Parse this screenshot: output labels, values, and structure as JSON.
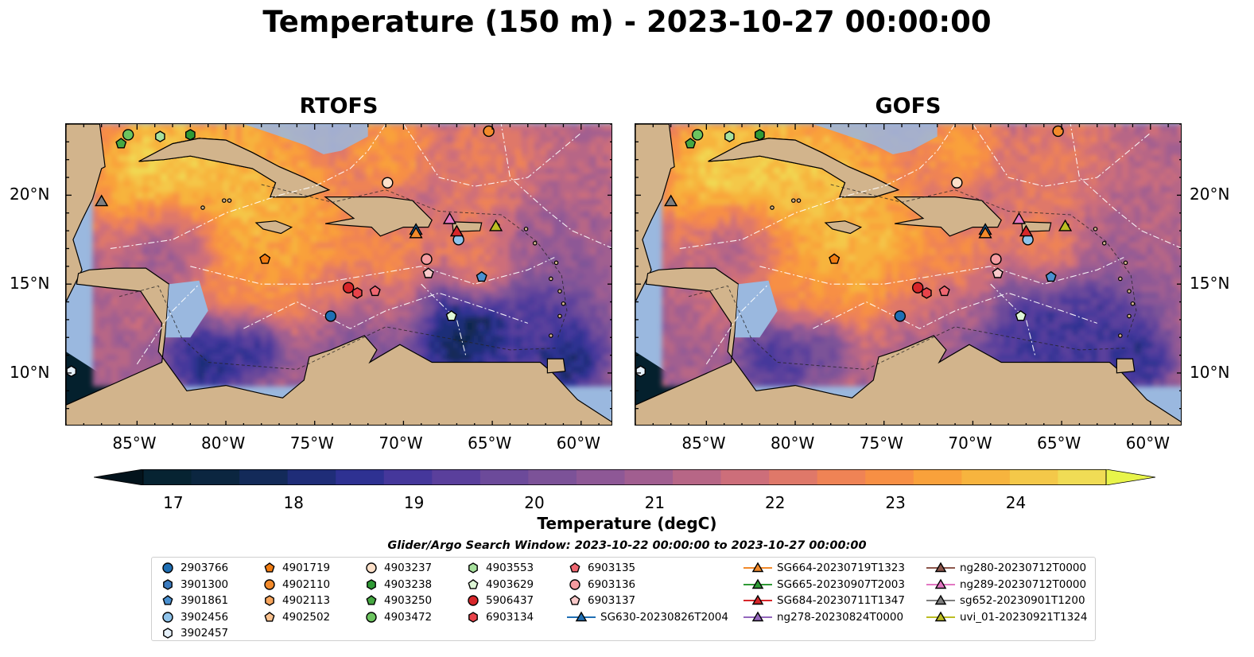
{
  "title": "Temperature (150 m) - 2023-10-27 00:00:00",
  "panels": [
    {
      "title": "RTOFS",
      "key": "rtofs"
    },
    {
      "title": "GOFS",
      "key": "gofs"
    }
  ],
  "lon_ticks": [
    "85°W",
    "80°W",
    "75°W",
    "70°W",
    "65°W",
    "60°W"
  ],
  "lat_ticks": [
    "20°N",
    "15°N",
    "10°N"
  ],
  "colorbar": {
    "label": "Temperature (degC)",
    "ticks": [
      "17",
      "18",
      "19",
      "20",
      "21",
      "22",
      "23",
      "24"
    ],
    "range": [
      16.75,
      24.75
    ],
    "extend": "both",
    "colors": [
      "#062332",
      "#0b2640",
      "#132a59",
      "#1f2d78",
      "#2e3192",
      "#45379b",
      "#5a3f9c",
      "#6c4a9a",
      "#7c5298",
      "#8e5896",
      "#a15e90",
      "#b76686",
      "#cd6e7a",
      "#df7869",
      "#ef8355",
      "#f78f44",
      "#f9a13b",
      "#f7b43e",
      "#f4c849",
      "#f0dc55"
    ],
    "extend_low_color": "#03131c",
    "extend_high_color": "#e8f44a"
  },
  "search_window": "Glider/Argo Search Window: 2023-10-22 00:00:00 to 2023-10-27 00:00:00",
  "legend": [
    {
      "label": "2903766",
      "marker": "circle",
      "color": "#1f6fb4"
    },
    {
      "label": "3901300",
      "marker": "hexagon",
      "color": "#3b7bbf"
    },
    {
      "label": "3901861",
      "marker": "pentagon",
      "color": "#4a90d0"
    },
    {
      "label": "3902456",
      "marker": "circle",
      "color": "#8fc3ea"
    },
    {
      "label": "3902457",
      "marker": "hexagon",
      "color": "#e6f1fb"
    },
    {
      "label": "4901719",
      "marker": "pentagon",
      "color": "#f07c12"
    },
    {
      "label": "4902110",
      "marker": "circle",
      "color": "#f28a2b"
    },
    {
      "label": "4902113",
      "marker": "hexagon",
      "color": "#f7a55d"
    },
    {
      "label": "4902502",
      "marker": "pentagon",
      "color": "#fbc28f"
    },
    {
      "label": "4903237",
      "marker": "circle",
      "color": "#fde0c9"
    },
    {
      "label": "4903238",
      "marker": "hexagon",
      "color": "#2f9a35"
    },
    {
      "label": "4903250",
      "marker": "pentagon",
      "color": "#46a842"
    },
    {
      "label": "4903472",
      "marker": "circle",
      "color": "#6cc45f"
    },
    {
      "label": "4903553",
      "marker": "hexagon",
      "color": "#a7e19d"
    },
    {
      "label": "4903629",
      "marker": "pentagon",
      "color": "#def6d6"
    },
    {
      "label": "5906437",
      "marker": "circle",
      "color": "#d7262a"
    },
    {
      "label": "6903134",
      "marker": "hexagon",
      "color": "#e8434a"
    },
    {
      "label": "6903135",
      "marker": "pentagon",
      "color": "#ef6670"
    },
    {
      "label": "6903136",
      "marker": "circle",
      "color": "#f49ca0"
    },
    {
      "label": "6903137",
      "marker": "pentagon",
      "color": "#f9c9c9"
    },
    {
      "label": "SG630-20230826T2004",
      "marker": "triangle",
      "color": "#1f6fb4"
    },
    {
      "label": "SG664-20230719T1323",
      "marker": "triangle",
      "color": "#f28a2b"
    },
    {
      "label": "SG665-20230907T2003",
      "marker": "triangle",
      "color": "#2f9a35"
    },
    {
      "label": "SG684-20230711T1347",
      "marker": "triangle",
      "color": "#d7262a"
    },
    {
      "label": "ng278-20230824T0000",
      "marker": "triangle",
      "color": "#9467bd"
    },
    {
      "label": "ng280-20230712T0000",
      "marker": "triangle",
      "color": "#8c564b"
    },
    {
      "label": "ng289-20230712T0000",
      "marker": "triangle",
      "color": "#e377c2"
    },
    {
      "label": "sg652-20230901T1200",
      "marker": "triangle",
      "color": "#7f7f7f"
    },
    {
      "label": "uvi_01-20230921T1324",
      "marker": "triangle",
      "color": "#bcbd22"
    }
  ],
  "observations": [
    {
      "id": "4903250",
      "lon": -85.9,
      "lat": 22.9
    },
    {
      "id": "4903472",
      "lon": -85.5,
      "lat": 23.4
    },
    {
      "id": "4903553",
      "lon": -83.7,
      "lat": 23.3
    },
    {
      "id": "4903238",
      "lon": -82.0,
      "lat": 23.4
    },
    {
      "id": "4902110",
      "lon": -65.2,
      "lat": 23.6
    },
    {
      "id": "sg652-20230901T1200",
      "lon": -87.0,
      "lat": 19.6
    },
    {
      "id": "4901719",
      "lon": -77.8,
      "lat": 16.4
    },
    {
      "id": "4903237",
      "lon": -70.9,
      "lat": 20.7
    },
    {
      "id": "SG630-20230826T2004",
      "lon": -69.3,
      "lat": 18.0
    },
    {
      "id": "SG664-20230719T1323",
      "lon": -69.3,
      "lat": 17.8
    },
    {
      "id": "3902456",
      "lon": -66.9,
      "lat": 17.5
    },
    {
      "id": "SG684-20230711T1347",
      "lon": -67.0,
      "lat": 17.9
    },
    {
      "id": "ng289-20230712T0000",
      "lon": -67.4,
      "lat": 18.6
    },
    {
      "id": "uvi_01-20230921T1324",
      "lon": -64.8,
      "lat": 18.2
    },
    {
      "id": "6903136",
      "lon": -68.7,
      "lat": 16.4
    },
    {
      "id": "6903137",
      "lon": -68.6,
      "lat": 15.6
    },
    {
      "id": "3901861",
      "lon": -65.6,
      "lat": 15.4
    },
    {
      "id": "5906437",
      "lon": -73.1,
      "lat": 14.8
    },
    {
      "id": "6903134",
      "lon": -72.6,
      "lat": 14.5
    },
    {
      "id": "6903135",
      "lon": -71.6,
      "lat": 14.6
    },
    {
      "id": "2903766",
      "lon": -74.1,
      "lat": 13.2
    },
    {
      "id": "4903629",
      "lon": -67.3,
      "lat": 13.2
    },
    {
      "id": "3902457",
      "lon": -88.7,
      "lat": 10.1
    }
  ]
}
